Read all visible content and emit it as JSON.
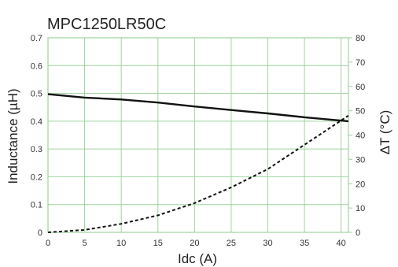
{
  "chart_data": {
    "type": "line",
    "title": "MPC1250LR50C",
    "xlabel": "Idc (A)",
    "ylabel": "Inductance (µH)",
    "y2label": "ΔT (°C)",
    "xlim": [
      0,
      41
    ],
    "ylim": [
      0,
      0.7
    ],
    "y2lim": [
      0,
      80
    ],
    "x_ticks": [
      "0",
      "5",
      "10",
      "15",
      "20",
      "25",
      "30",
      "35",
      "40"
    ],
    "y_ticks": [
      "0",
      "0.1",
      "0.2",
      "0.3",
      "0.4",
      "0.5",
      "0.6",
      "0.7"
    ],
    "y2_ticks": [
      "0",
      "10",
      "20",
      "30",
      "40",
      "50",
      "60",
      "70",
      "80"
    ],
    "grid": true,
    "grid_color": "#9ed39e",
    "series": [
      {
        "axis": "left",
        "style": "solid",
        "color": "#111111",
        "x": [
          0,
          5,
          10,
          15,
          20,
          25,
          30,
          35,
          41
        ],
        "values": [
          0.497,
          0.485,
          0.478,
          0.467,
          0.453,
          0.44,
          0.428,
          0.414,
          0.4
        ]
      },
      {
        "axis": "right",
        "style": "dashed",
        "color": "#111111",
        "x": [
          0,
          5,
          10,
          15,
          20,
          25,
          30,
          35,
          41
        ],
        "values": [
          0,
          1,
          3.5,
          7,
          12,
          18.5,
          26,
          36,
          48
        ]
      }
    ]
  }
}
